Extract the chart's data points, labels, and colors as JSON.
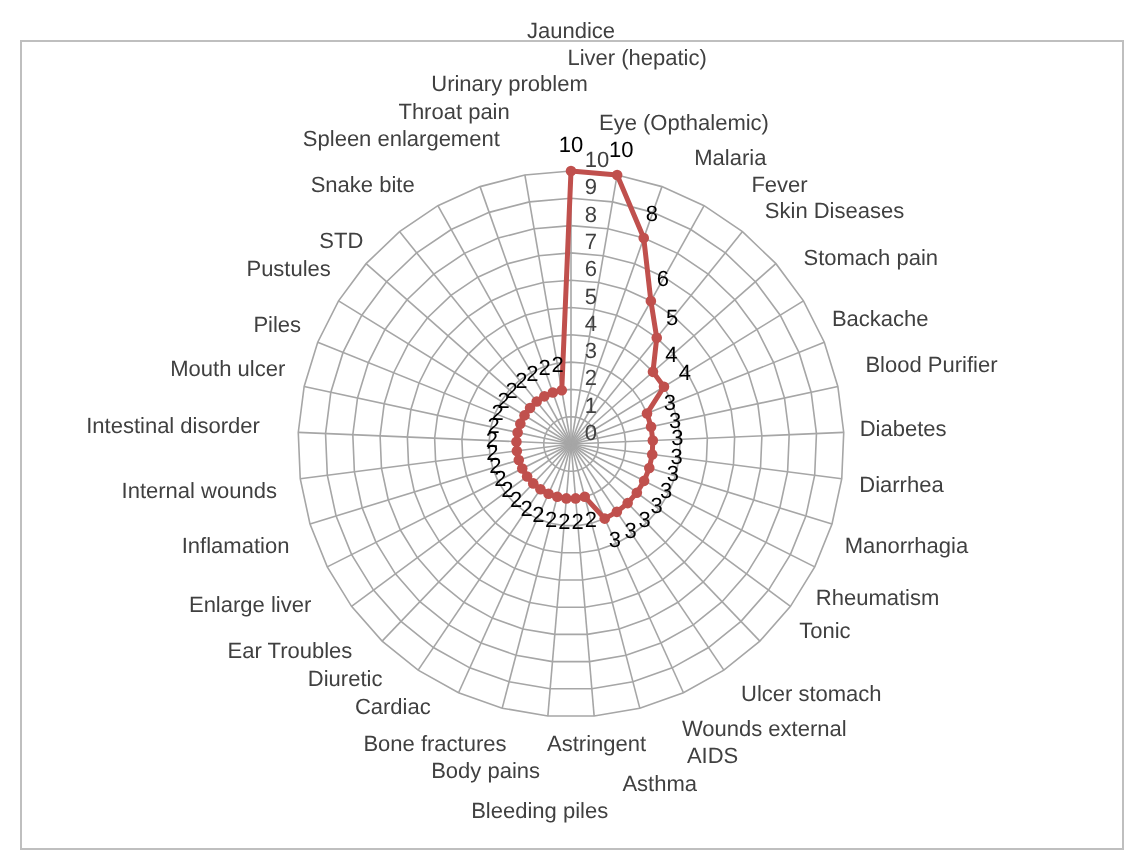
{
  "chart_data": {
    "type": "radar",
    "categories": [
      "Jaundice",
      "Liver (hepatic)",
      "Eye (Opthalemic)",
      "Malaria",
      "Fever",
      "Skin Diseases",
      "Stomach pain",
      "Backache",
      "Blood Purifier",
      "Diabetes",
      "Diarrhea",
      "Manorrhagia",
      "Rheumatism",
      "Tonic",
      "Ulcer stomach",
      "Wounds external",
      "AIDS",
      "Asthma",
      "Astringent",
      "Bleeding piles",
      "Body pains",
      "Bone fractures",
      "Cardiac",
      "Diuretic",
      "Ear Troubles",
      "Enlarge liver",
      "Inflamation",
      "Internal wounds",
      "Intestinal disorder",
      "Mouth ulcer",
      "Piles",
      "Pustules",
      "STD",
      "Snake bite",
      "Spleen enlargement",
      "Throat pain",
      "Urinary problem"
    ],
    "series": [
      {
        "color": "#c0504d",
        "values": [
          10,
          10,
          8,
          6,
          5,
          4,
          4,
          3,
          3,
          3,
          3,
          3,
          3,
          3,
          3,
          3,
          3,
          2,
          2,
          2,
          2,
          2,
          2,
          2,
          2,
          2,
          2,
          2,
          2,
          2,
          2,
          2,
          2,
          2,
          2,
          2,
          2
        ]
      }
    ],
    "ylim": [
      0,
      10
    ],
    "yticks": [
      0,
      1,
      2,
      3,
      4,
      5,
      6,
      7,
      8,
      9,
      10
    ],
    "grid": true,
    "marker": "circle",
    "data_labels": true,
    "legend": false
  }
}
